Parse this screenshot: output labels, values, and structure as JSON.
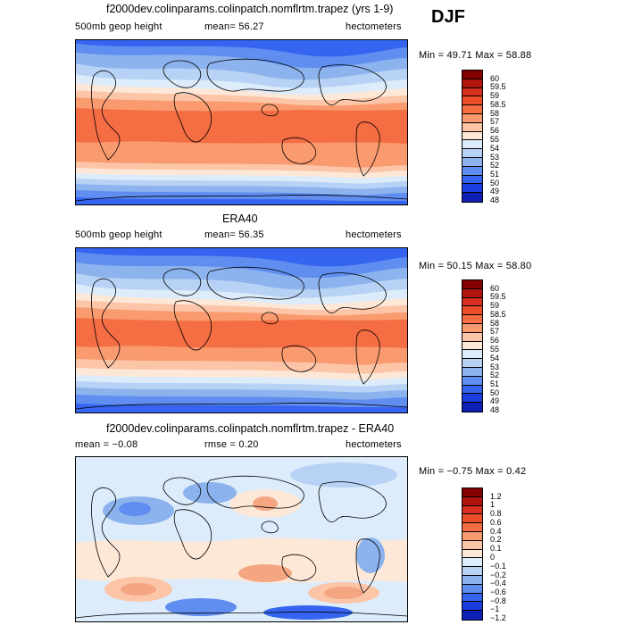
{
  "season": "DJF",
  "panels": [
    {
      "id": "model",
      "title": "f2000dev.colinparams.colinpatch.nomflrtm.trapez (yrs 1-9)",
      "left_label": "500mb geop height",
      "center_label": "mean=  56.27",
      "units": "hectometers",
      "minmax": "Min =  49.71 Max =  58.88",
      "colorbar_labels": [
        "60",
        "59.5",
        "59",
        "58.5",
        "58",
        "57",
        "56",
        "55",
        "54",
        "53",
        "52",
        "51",
        "50",
        "49",
        "48"
      ]
    },
    {
      "id": "obs",
      "title": "ERA40",
      "left_label": "500mb geop height",
      "center_label": "mean=  56.35",
      "units": "hectometers",
      "minmax": "Min =  50.15 Max =  58.80",
      "colorbar_labels": [
        "60",
        "59.5",
        "59",
        "58.5",
        "58",
        "57",
        "56",
        "55",
        "54",
        "53",
        "52",
        "51",
        "50",
        "49",
        "48"
      ]
    },
    {
      "id": "diff",
      "title": "f2000dev.colinparams.colinpatch.nomflrtm.trapez - ERA40",
      "left_label": "mean =  −0.08",
      "center_label": "rmse =    0.20",
      "units": "hectometers",
      "minmax": "Min = −0.75 Max =   0.42",
      "colorbar_labels": [
        "1.2",
        "1",
        "0.8",
        "0.6",
        "0.4",
        "0.2",
        "0.1",
        "0",
        "−0.1",
        "−0.2",
        "−0.4",
        "−0.6",
        "−0.8",
        "−1",
        "−1.2"
      ]
    }
  ],
  "colors": {
    "scale": [
      "#840000",
      "#b0140c",
      "#d7301f",
      "#ec4e2b",
      "#f46d43",
      "#f99a6f",
      "#fcc5a8",
      "#fde8d8",
      "#ddecfa",
      "#b7d2f4",
      "#8db3ee",
      "#5f8df0",
      "#3565f0",
      "#1a3ee0",
      "#0d1fb5",
      "#00008a"
    ],
    "coast": "#000000",
    "border": "#000000"
  }
}
